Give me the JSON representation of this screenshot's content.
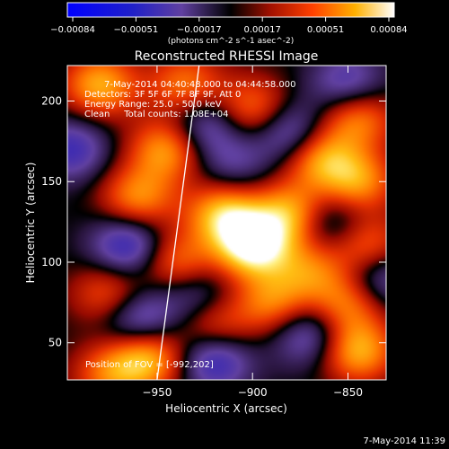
{
  "chart_data": {
    "type": "heatmap",
    "title": "Reconstructed RHESSI Image",
    "xlabel": "Heliocentric X (arcsec)",
    "ylabel": "Heliocentric Y (arcsec)",
    "xlim": [
      -997,
      -830
    ],
    "ylim": [
      27,
      222
    ],
    "x_ticks": [
      -950,
      -900,
      -850
    ],
    "y_ticks": [
      50,
      100,
      150,
      200
    ],
    "colorbar": {
      "ticks": [
        "-0.00084",
        "-0.00051",
        "-0.00017",
        "0.00017",
        "0.00051",
        "0.00084"
      ],
      "unit_label": "(photons cm^-2 s^-1 asec^-2)",
      "range": [
        -0.00084,
        0.00084
      ]
    },
    "annotations": [
      "7-May-2014 04:40:48.000 to 04:44:58.000",
      "Detectors: 3F 5F 6F 7F 8F 9F, Att 0",
      "Energy Range: 25.0 - 50.0 keV",
      "Clean     Total counts: 1.08E+04"
    ],
    "footer_note": "Position of FOV = [-992,202]",
    "date_stamp": "7-May-2014 11:39",
    "limb_line": [
      [
        -950,
        27
      ],
      [
        -928,
        222
      ]
    ],
    "sources": [
      {
        "x": -900,
        "y": 110,
        "v": 0.00084
      },
      {
        "x": -915,
        "y": 130,
        "v": 0.00062
      },
      {
        "x": -880,
        "y": 130,
        "v": 0.0006
      },
      {
        "x": -865,
        "y": 165,
        "v": 0.00055
      },
      {
        "x": -845,
        "y": 190,
        "v": 0.0005
      },
      {
        "x": -845,
        "y": 150,
        "v": 0.00052
      },
      {
        "x": -945,
        "y": 170,
        "v": 0.00055
      },
      {
        "x": -960,
        "y": 140,
        "v": 0.0005
      },
      {
        "x": -980,
        "y": 210,
        "v": 0.00058
      },
      {
        "x": -935,
        "y": 210,
        "v": 0.00045
      },
      {
        "x": -900,
        "y": 195,
        "v": 0.00045
      },
      {
        "x": -840,
        "y": 110,
        "v": 0.00045
      },
      {
        "x": -850,
        "y": 75,
        "v": 0.00048
      },
      {
        "x": -845,
        "y": 45,
        "v": 0.0006
      },
      {
        "x": -890,
        "y": 75,
        "v": 0.00045
      },
      {
        "x": -920,
        "y": 60,
        "v": 0.0004
      },
      {
        "x": -955,
        "y": 40,
        "v": 0.0006
      },
      {
        "x": -975,
        "y": 80,
        "v": 0.0004
      },
      {
        "x": -975,
        "y": 30,
        "v": 0.0004
      },
      {
        "x": -940,
        "y": 100,
        "v": 0.00045
      },
      {
        "x": -870,
        "y": 95,
        "v": 0.0004
      },
      {
        "x": -925,
        "y": 185,
        "v": -0.0004
      },
      {
        "x": -880,
        "y": 180,
        "v": -0.00045
      },
      {
        "x": -850,
        "y": 210,
        "v": -0.0004
      },
      {
        "x": -965,
        "y": 110,
        "v": -0.0005
      },
      {
        "x": -960,
        "y": 65,
        "v": -0.00045
      },
      {
        "x": -920,
        "y": 40,
        "v": -0.0005
      },
      {
        "x": -860,
        "y": 125,
        "v": -0.00035
      },
      {
        "x": -835,
        "y": 90,
        "v": -0.0004
      },
      {
        "x": -870,
        "y": 55,
        "v": -0.0004
      },
      {
        "x": -995,
        "y": 170,
        "v": -0.0004
      },
      {
        "x": -930,
        "y": 80,
        "v": -0.0003
      },
      {
        "x": -910,
        "y": 160,
        "v": -0.00025
      }
    ]
  }
}
